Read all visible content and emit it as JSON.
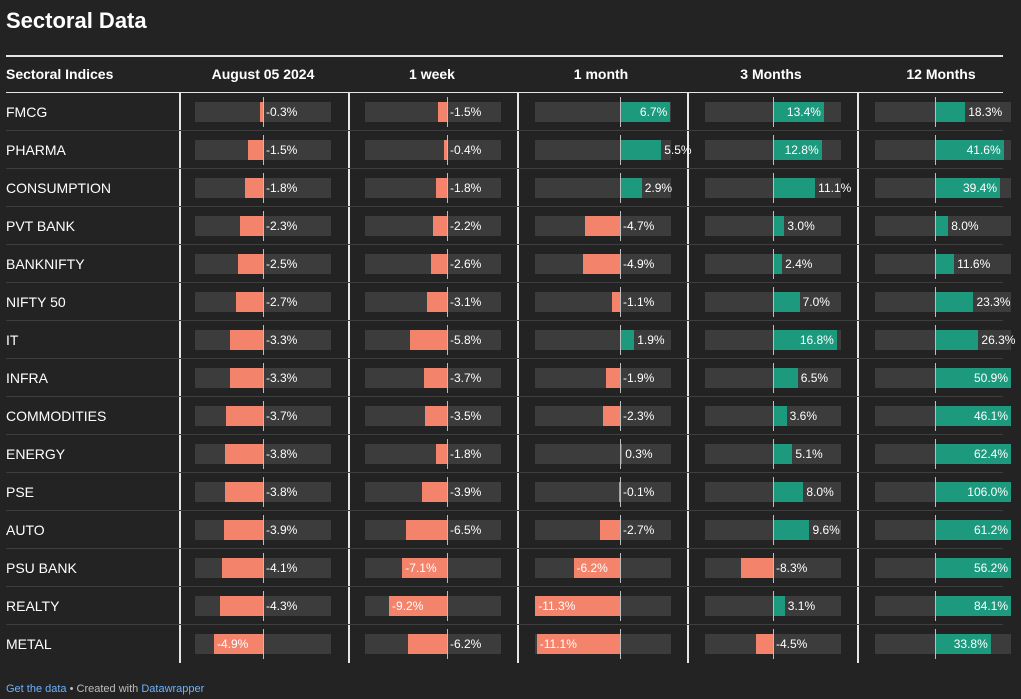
{
  "title": "Sectoral Data",
  "columns": [
    "Sectoral Indices",
    "August 05 2024",
    "1 week",
    "1 month",
    "3 Months",
    "12 Months"
  ],
  "rows": [
    {
      "name": "FMCG",
      "values": [
        -0.3,
        -1.5,
        6.7,
        13.4,
        18.3
      ],
      "labels": [
        "-0.3%",
        "-1.5%",
        "6.7%",
        "13.4%",
        "18.3%"
      ]
    },
    {
      "name": "PHARMA",
      "values": [
        -1.5,
        -0.4,
        5.5,
        12.8,
        41.6
      ],
      "labels": [
        "-1.5%",
        "-0.4%",
        "5.5%",
        "12.8%",
        "41.6%"
      ]
    },
    {
      "name": "CONSUMPTION",
      "values": [
        -1.8,
        -1.8,
        2.9,
        11.1,
        39.4
      ],
      "labels": [
        "-1.8%",
        "-1.8%",
        "2.9%",
        "11.1%",
        "39.4%"
      ]
    },
    {
      "name": "PVT BANK",
      "values": [
        -2.3,
        -2.2,
        -4.7,
        3.0,
        8.0
      ],
      "labels": [
        "-2.3%",
        "-2.2%",
        "-4.7%",
        "3.0%",
        "8.0%"
      ]
    },
    {
      "name": "BANKNIFTY",
      "values": [
        -2.5,
        -2.6,
        -4.9,
        2.4,
        11.6
      ],
      "labels": [
        "-2.5%",
        "-2.6%",
        "-4.9%",
        "2.4%",
        "11.6%"
      ]
    },
    {
      "name": "NIFTY 50",
      "values": [
        -2.7,
        -3.1,
        -1.1,
        7.0,
        23.3
      ],
      "labels": [
        "-2.7%",
        "-3.1%",
        "-1.1%",
        "7.0%",
        "23.3%"
      ]
    },
    {
      "name": "IT",
      "values": [
        -3.3,
        -5.8,
        1.9,
        16.8,
        26.3
      ],
      "labels": [
        "-3.3%",
        "-5.8%",
        "1.9%",
        "16.8%",
        "26.3%"
      ]
    },
    {
      "name": "INFRA",
      "values": [
        -3.3,
        -3.7,
        -1.9,
        6.5,
        50.9
      ],
      "labels": [
        "-3.3%",
        "-3.7%",
        "-1.9%",
        "6.5%",
        "50.9%"
      ]
    },
    {
      "name": "COMMODITIES",
      "values": [
        -3.7,
        -3.5,
        -2.3,
        3.6,
        46.1
      ],
      "labels": [
        "-3.7%",
        "-3.5%",
        "-2.3%",
        "3.6%",
        "46.1%"
      ]
    },
    {
      "name": "ENERGY",
      "values": [
        -3.8,
        -1.8,
        0.3,
        5.1,
        62.4
      ],
      "labels": [
        "-3.8%",
        "-1.8%",
        "0.3%",
        "5.1%",
        "62.4%"
      ]
    },
    {
      "name": "PSE",
      "values": [
        -3.8,
        -3.9,
        -0.1,
        8.0,
        106.0
      ],
      "labels": [
        "-3.8%",
        "-3.9%",
        "-0.1%",
        "8.0%",
        "106.0%"
      ]
    },
    {
      "name": "AUTO",
      "values": [
        -3.9,
        -6.5,
        -2.7,
        9.6,
        61.2
      ],
      "labels": [
        "-3.9%",
        "-6.5%",
        "-2.7%",
        "9.6%",
        "61.2%"
      ]
    },
    {
      "name": "PSU BANK",
      "values": [
        -4.1,
        -7.1,
        -6.2,
        -8.3,
        56.2
      ],
      "labels": [
        "-4.1%",
        "-7.1%",
        "-6.2%",
        "-8.3%",
        "56.2%"
      ]
    },
    {
      "name": "REALTY",
      "values": [
        -4.3,
        -9.2,
        -11.3,
        3.1,
        84.1
      ],
      "labels": [
        "-4.3%",
        "-9.2%",
        "-11.3%",
        "3.1%",
        "84.1%"
      ]
    },
    {
      "name": "METAL",
      "values": [
        -4.9,
        -6.2,
        -11.1,
        -4.5,
        33.8
      ],
      "labels": [
        "-4.9%",
        "-6.2%",
        "-11.1%",
        "-4.5%",
        "33.8%"
      ]
    }
  ],
  "colors": {
    "negative": "#f4836b",
    "positive": "#1d9a7e",
    "track": "#3c3c3c",
    "background": "#232323"
  },
  "footer": {
    "link1": "Get the data",
    "separator": " • Created with ",
    "link2": "Datawrapper"
  }
}
